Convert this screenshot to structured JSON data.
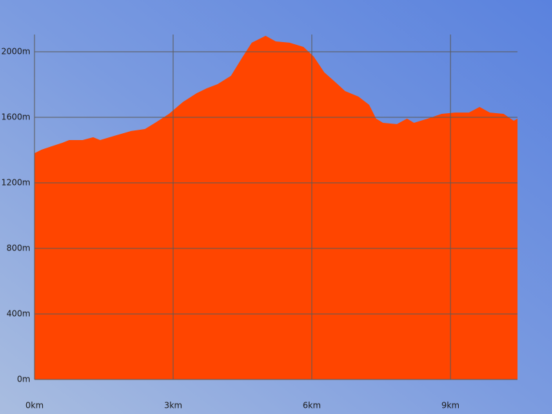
{
  "chart_data": {
    "type": "area",
    "color": "#ff4500",
    "grid": true,
    "x": [
      0,
      0.15,
      0.37,
      0.6,
      0.75,
      1.04,
      1.27,
      1.42,
      1.72,
      2.09,
      2.39,
      2.61,
      2.91,
      3.21,
      3.51,
      3.73,
      3.96,
      4.25,
      4.48,
      4.7,
      5.0,
      5.22,
      5.52,
      5.82,
      6.04,
      6.27,
      6.49,
      6.72,
      7.01,
      7.24,
      7.39,
      7.54,
      7.84,
      8.06,
      8.21,
      8.51,
      8.81,
      9.1,
      9.4,
      9.63,
      9.85,
      10.15,
      10.37,
      10.45
    ],
    "values": [
      1381,
      1402,
      1423,
      1444,
      1461,
      1461,
      1478,
      1461,
      1486,
      1516,
      1528,
      1566,
      1621,
      1693,
      1747,
      1777,
      1802,
      1853,
      1958,
      2055,
      2097,
      2063,
      2055,
      2029,
      1971,
      1874,
      1819,
      1760,
      1726,
      1676,
      1592,
      1566,
      1558,
      1592,
      1566,
      1592,
      1621,
      1629,
      1629,
      1663,
      1629,
      1621,
      1579,
      1592
    ],
    "xlim": [
      0,
      10.45
    ],
    "ylim": [
      0,
      2105
    ],
    "xticks": [
      {
        "value": 0,
        "label": "0km"
      },
      {
        "value": 3,
        "label": "3km"
      },
      {
        "value": 6,
        "label": "6km"
      },
      {
        "value": 9,
        "label": "9km"
      }
    ],
    "yticks": [
      {
        "value": 0,
        "label": "0m"
      },
      {
        "value": 400,
        "label": "400m"
      },
      {
        "value": 800,
        "label": "800m"
      },
      {
        "value": 1200,
        "label": "1200m"
      },
      {
        "value": 1600,
        "label": "1600m"
      },
      {
        "value": 2000,
        "label": "2000m"
      }
    ]
  }
}
